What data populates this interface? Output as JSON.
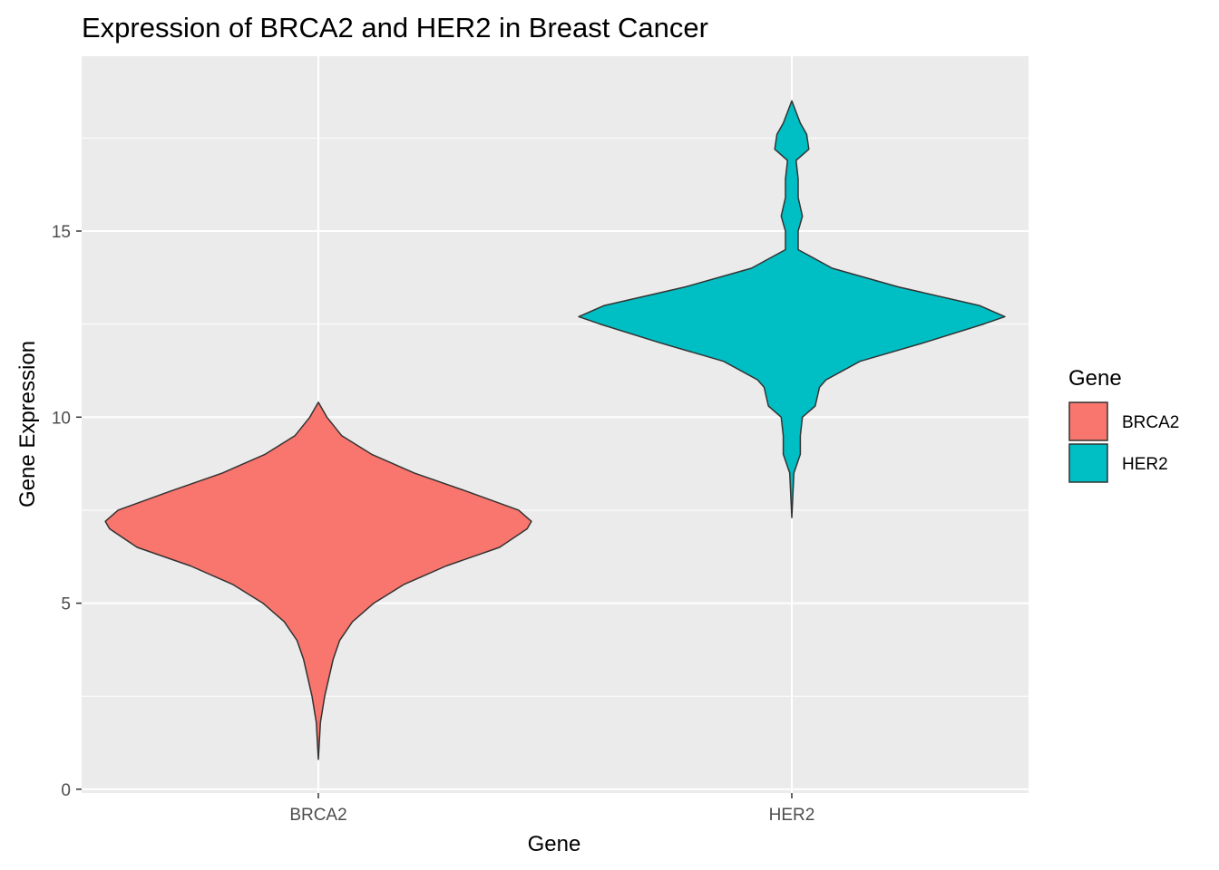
{
  "chart_data": {
    "type": "violin",
    "title": "Expression of BRCA2 and HER2 in Breast Cancer",
    "xlabel": "Gene",
    "ylabel": "Gene Expression",
    "categories": [
      "BRCA2",
      "HER2"
    ],
    "ylim": [
      -0.1,
      19.7
    ],
    "y_ticks": [
      0,
      5,
      10,
      15
    ],
    "y_tick_labels": [
      "0",
      "5",
      "10",
      "15"
    ],
    "grid": true,
    "legend": {
      "title": "Gene",
      "position": "right",
      "entries": [
        {
          "label": "BRCA2",
          "color": "#F8766D"
        },
        {
          "label": "HER2",
          "color": "#00BFC4"
        }
      ]
    },
    "series": [
      {
        "name": "BRCA2",
        "color": "#F8766D",
        "profile": [
          [
            0.8,
            0.0
          ],
          [
            1.8,
            0.01
          ],
          [
            2.5,
            0.03
          ],
          [
            3.0,
            0.05
          ],
          [
            3.5,
            0.07
          ],
          [
            4.0,
            0.1
          ],
          [
            4.5,
            0.16
          ],
          [
            5.0,
            0.26
          ],
          [
            5.5,
            0.4
          ],
          [
            6.0,
            0.6
          ],
          [
            6.5,
            0.85
          ],
          [
            7.0,
            0.98
          ],
          [
            7.2,
            1.0
          ],
          [
            7.5,
            0.94
          ],
          [
            8.0,
            0.7
          ],
          [
            8.5,
            0.45
          ],
          [
            9.0,
            0.25
          ],
          [
            9.5,
            0.11
          ],
          [
            10.0,
            0.04
          ],
          [
            10.4,
            0.0
          ]
        ]
      },
      {
        "name": "HER2",
        "color": "#00BFC4",
        "profile": [
          [
            7.3,
            0.0
          ],
          [
            8.5,
            0.01
          ],
          [
            9.0,
            0.04
          ],
          [
            9.5,
            0.04
          ],
          [
            10.0,
            0.05
          ],
          [
            10.3,
            0.11
          ],
          [
            10.8,
            0.13
          ],
          [
            11.0,
            0.16
          ],
          [
            11.5,
            0.32
          ],
          [
            12.0,
            0.62
          ],
          [
            12.5,
            0.9
          ],
          [
            12.7,
            1.0
          ],
          [
            13.0,
            0.88
          ],
          [
            13.5,
            0.5
          ],
          [
            14.0,
            0.19
          ],
          [
            14.5,
            0.03
          ],
          [
            15.0,
            0.03
          ],
          [
            15.4,
            0.05
          ],
          [
            15.9,
            0.03
          ],
          [
            16.4,
            0.03
          ],
          [
            16.9,
            0.02
          ],
          [
            17.2,
            0.08
          ],
          [
            17.6,
            0.07
          ],
          [
            17.9,
            0.04
          ],
          [
            18.2,
            0.02
          ],
          [
            18.5,
            0.0
          ]
        ]
      }
    ]
  }
}
